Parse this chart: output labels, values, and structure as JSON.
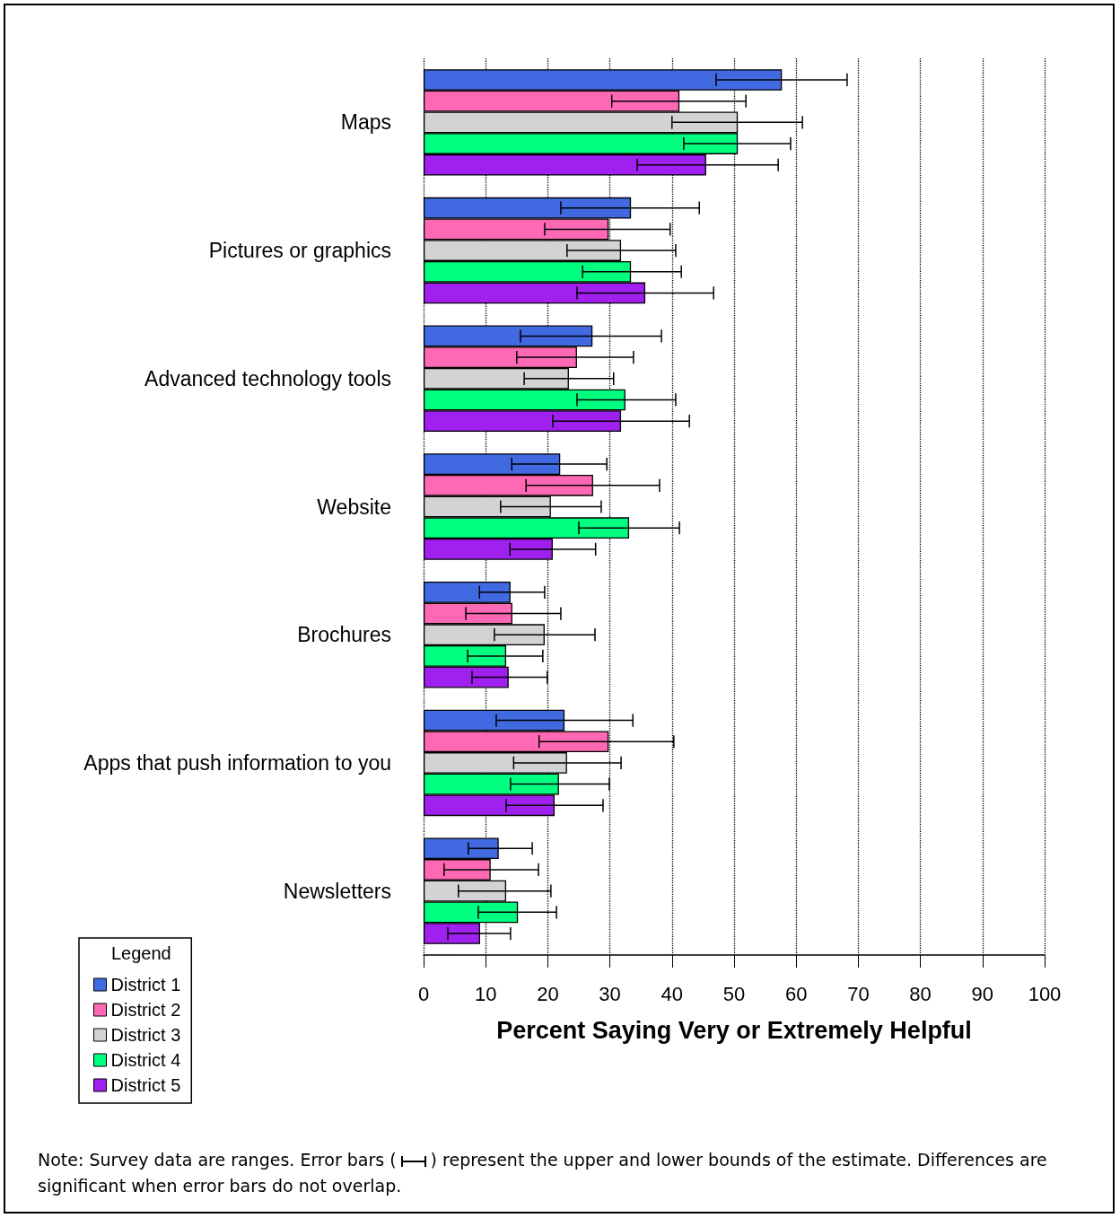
{
  "chart_data": {
    "type": "bar",
    "orientation": "horizontal",
    "categories": [
      "Maps",
      "Pictures or graphics",
      "Advanced technology tools",
      "Website",
      "Brochures",
      "Apps that push information to you",
      "Newsletters"
    ],
    "series": [
      {
        "name": "District 1",
        "color": "#4169e1",
        "values": [
          57.7,
          33.4,
          27.2,
          22.0,
          14.0,
          22.7,
          12.1
        ],
        "errors": [
          [
            47.1,
            68.2
          ],
          [
            22.1,
            44.4
          ],
          [
            15.6,
            38.3
          ],
          [
            14.2,
            29.5
          ],
          [
            9.0,
            19.5
          ],
          [
            11.7,
            33.7
          ],
          [
            7.2,
            17.5
          ]
        ]
      },
      {
        "name": "District 2",
        "color": "#ff69b4",
        "values": [
          41.2,
          29.8,
          24.7,
          27.3,
          14.3,
          29.8,
          10.8
        ],
        "errors": [
          [
            30.3,
            51.9
          ],
          [
            19.5,
            39.7
          ],
          [
            15.0,
            33.8
          ],
          [
            16.5,
            38.0
          ],
          [
            6.8,
            22.1
          ],
          [
            18.6,
            40.3
          ],
          [
            3.3,
            18.5
          ]
        ]
      },
      {
        "name": "District 3",
        "color": "#d3d3d3",
        "values": [
          50.6,
          31.8,
          23.4,
          20.5,
          19.5,
          23.1,
          13.3
        ],
        "errors": [
          [
            40.0,
            61.0
          ],
          [
            23.1,
            40.6
          ],
          [
            16.2,
            30.6
          ],
          [
            12.4,
            28.6
          ],
          [
            11.4,
            27.6
          ],
          [
            14.5,
            31.8
          ],
          [
            5.6,
            20.5
          ]
        ]
      },
      {
        "name": "District 4",
        "color": "#00ff7f",
        "values": [
          50.6,
          33.4,
          32.5,
          33.1,
          13.3,
          21.8,
          15.2
        ],
        "errors": [
          [
            41.9,
            59.1
          ],
          [
            25.6,
            41.5
          ],
          [
            24.7,
            40.6
          ],
          [
            25.0,
            41.2
          ],
          [
            7.1,
            19.2
          ],
          [
            14.0,
            29.9
          ],
          [
            8.8,
            21.4
          ]
        ]
      },
      {
        "name": "District 5",
        "color": "#a020f0",
        "values": [
          45.5,
          35.7,
          31.8,
          20.8,
          13.7,
          21.1,
          9.1
        ],
        "errors": [
          [
            34.4,
            57.1
          ],
          [
            24.7,
            46.7
          ],
          [
            20.8,
            42.8
          ],
          [
            13.9,
            27.7
          ],
          [
            7.8,
            19.9
          ],
          [
            13.3,
            28.9
          ],
          [
            3.9,
            14.0
          ]
        ]
      }
    ],
    "xlabel": "Percent Saying Very or Extremely Helpful",
    "xlim": [
      0,
      100
    ],
    "xticks": [
      0,
      10,
      20,
      30,
      40,
      50,
      60,
      70,
      80,
      90,
      100
    ],
    "grid": "x",
    "line_style": "dotted",
    "legend": "bottom left",
    "legend_title": "Legend",
    "annotations": [
      "Note:  Survey data are ranges.  Error bars (",
      ") represent the upper and lower bounds of the estimate. Differences are significant when error bars do not overlap."
    ]
  }
}
